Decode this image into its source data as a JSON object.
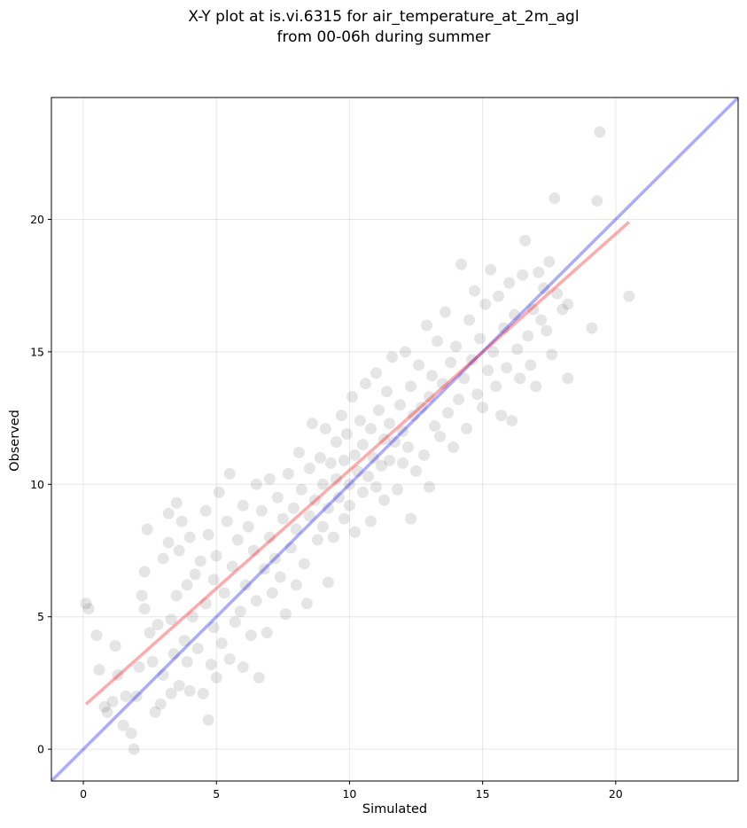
{
  "chart_data": {
    "type": "scatter",
    "title": "X-Y plot at is.vi.6315 for air_temperature_at_2m_agl",
    "subtitle": "from 00-06h during summer",
    "xlabel": "Simulated",
    "ylabel": "Observed",
    "xlim": [
      -1.2,
      24.6
    ],
    "ylim": [
      -1.2,
      24.6
    ],
    "xticks": [
      0,
      5,
      10,
      15,
      20
    ],
    "yticks": [
      0,
      5,
      10,
      15,
      20
    ],
    "grid": true,
    "point_color": "#000000",
    "point_alpha": 0.1,
    "identity_line": {
      "color": "#0000ff",
      "x": [
        -1.2,
        24.6
      ],
      "y": [
        -1.2,
        24.6
      ]
    },
    "fit_line": {
      "color": "#ff0000",
      "x": [
        0.1,
        20.5
      ],
      "y": [
        1.7,
        19.9
      ]
    },
    "points": [
      [
        0.1,
        5.5
      ],
      [
        0.2,
        5.3
      ],
      [
        0.5,
        4.3
      ],
      [
        0.6,
        3.0
      ],
      [
        0.8,
        1.6
      ],
      [
        0.9,
        1.4
      ],
      [
        1.1,
        1.8
      ],
      [
        1.2,
        3.9
      ],
      [
        1.3,
        2.8
      ],
      [
        1.5,
        0.9
      ],
      [
        1.6,
        2.0
      ],
      [
        1.8,
        0.6
      ],
      [
        1.9,
        0.0
      ],
      [
        2.0,
        2.0
      ],
      [
        2.1,
        3.1
      ],
      [
        2.2,
        5.8
      ],
      [
        2.3,
        6.7
      ],
      [
        2.3,
        5.3
      ],
      [
        2.4,
        8.3
      ],
      [
        2.5,
        4.4
      ],
      [
        2.6,
        3.3
      ],
      [
        2.7,
        1.4
      ],
      [
        2.8,
        4.7
      ],
      [
        2.9,
        1.7
      ],
      [
        3.0,
        7.2
      ],
      [
        3.0,
        2.8
      ],
      [
        3.2,
        8.9
      ],
      [
        3.2,
        7.8
      ],
      [
        3.3,
        4.9
      ],
      [
        3.3,
        2.1
      ],
      [
        3.4,
        3.6
      ],
      [
        3.5,
        9.3
      ],
      [
        3.5,
        5.8
      ],
      [
        3.6,
        7.5
      ],
      [
        3.6,
        2.4
      ],
      [
        3.7,
        8.6
      ],
      [
        3.8,
        4.1
      ],
      [
        3.9,
        3.3
      ],
      [
        3.9,
        6.2
      ],
      [
        4.0,
        2.2
      ],
      [
        4.0,
        8.0
      ],
      [
        4.1,
        5.0
      ],
      [
        4.2,
        6.6
      ],
      [
        4.3,
        3.8
      ],
      [
        4.4,
        7.1
      ],
      [
        4.5,
        2.1
      ],
      [
        4.6,
        9.0
      ],
      [
        4.6,
        5.5
      ],
      [
        4.7,
        1.1
      ],
      [
        4.7,
        8.1
      ],
      [
        4.8,
        3.2
      ],
      [
        4.9,
        4.6
      ],
      [
        4.9,
        6.4
      ],
      [
        5.0,
        2.7
      ],
      [
        5.0,
        7.3
      ],
      [
        5.1,
        9.7
      ],
      [
        5.2,
        4.0
      ],
      [
        5.3,
        5.9
      ],
      [
        5.4,
        8.6
      ],
      [
        5.5,
        10.4
      ],
      [
        5.5,
        3.4
      ],
      [
        5.6,
        6.9
      ],
      [
        5.7,
        4.8
      ],
      [
        5.8,
        7.9
      ],
      [
        5.9,
        5.2
      ],
      [
        6.0,
        9.2
      ],
      [
        6.0,
        3.1
      ],
      [
        6.1,
        6.2
      ],
      [
        6.2,
        8.4
      ],
      [
        6.3,
        4.3
      ],
      [
        6.4,
        7.5
      ],
      [
        6.5,
        10.0
      ],
      [
        6.5,
        5.6
      ],
      [
        6.6,
        2.7
      ],
      [
        6.7,
        9.0
      ],
      [
        6.8,
        6.8
      ],
      [
        6.9,
        4.4
      ],
      [
        7.0,
        8.0
      ],
      [
        7.0,
        10.2
      ],
      [
        7.1,
        5.9
      ],
      [
        7.2,
        7.2
      ],
      [
        7.3,
        9.5
      ],
      [
        7.4,
        6.5
      ],
      [
        7.5,
        8.7
      ],
      [
        7.6,
        5.1
      ],
      [
        7.7,
        10.4
      ],
      [
        7.8,
        7.6
      ],
      [
        7.9,
        9.1
      ],
      [
        8.0,
        6.2
      ],
      [
        8.0,
        8.3
      ],
      [
        8.1,
        11.2
      ],
      [
        8.2,
        9.8
      ],
      [
        8.3,
        7.0
      ],
      [
        8.4,
        5.5
      ],
      [
        8.5,
        10.6
      ],
      [
        8.5,
        8.8
      ],
      [
        8.6,
        12.3
      ],
      [
        8.7,
        9.4
      ],
      [
        8.8,
        7.9
      ],
      [
        8.9,
        11.0
      ],
      [
        9.0,
        10.0
      ],
      [
        9.0,
        8.4
      ],
      [
        9.1,
        12.1
      ],
      [
        9.2,
        6.3
      ],
      [
        9.2,
        9.1
      ],
      [
        9.3,
        10.8
      ],
      [
        9.4,
        8.0
      ],
      [
        9.5,
        11.6
      ],
      [
        9.5,
        10.2
      ],
      [
        9.6,
        9.5
      ],
      [
        9.7,
        12.6
      ],
      [
        9.8,
        8.7
      ],
      [
        9.8,
        10.9
      ],
      [
        9.9,
        11.9
      ],
      [
        10.0,
        10.0
      ],
      [
        10.0,
        9.2
      ],
      [
        10.1,
        13.3
      ],
      [
        10.2,
        11.1
      ],
      [
        10.2,
        8.2
      ],
      [
        10.3,
        10.5
      ],
      [
        10.4,
        12.4
      ],
      [
        10.5,
        9.7
      ],
      [
        10.5,
        11.5
      ],
      [
        10.6,
        13.8
      ],
      [
        10.7,
        10.3
      ],
      [
        10.8,
        8.6
      ],
      [
        10.8,
        12.1
      ],
      [
        10.9,
        11.0
      ],
      [
        11.0,
        9.9
      ],
      [
        11.0,
        14.2
      ],
      [
        11.1,
        12.8
      ],
      [
        11.2,
        10.7
      ],
      [
        11.3,
        11.7
      ],
      [
        11.3,
        9.4
      ],
      [
        11.4,
        13.5
      ],
      [
        11.5,
        12.3
      ],
      [
        11.5,
        10.9
      ],
      [
        11.6,
        14.8
      ],
      [
        11.7,
        11.6
      ],
      [
        11.8,
        9.8
      ],
      [
        11.9,
        13.0
      ],
      [
        12.0,
        12.0
      ],
      [
        12.0,
        10.8
      ],
      [
        12.1,
        15.0
      ],
      [
        12.2,
        11.4
      ],
      [
        12.3,
        13.7
      ],
      [
        12.3,
        8.7
      ],
      [
        12.4,
        12.6
      ],
      [
        12.5,
        10.5
      ],
      [
        12.6,
        14.5
      ],
      [
        12.7,
        12.9
      ],
      [
        12.8,
        11.1
      ],
      [
        12.9,
        16.0
      ],
      [
        13.0,
        13.3
      ],
      [
        13.0,
        9.9
      ],
      [
        13.1,
        14.1
      ],
      [
        13.2,
        12.2
      ],
      [
        13.3,
        15.4
      ],
      [
        13.4,
        11.8
      ],
      [
        13.5,
        13.8
      ],
      [
        13.6,
        16.5
      ],
      [
        13.7,
        12.7
      ],
      [
        13.8,
        14.6
      ],
      [
        13.9,
        11.4
      ],
      [
        14.0,
        15.2
      ],
      [
        14.1,
        13.2
      ],
      [
        14.2,
        18.3
      ],
      [
        14.3,
        14.0
      ],
      [
        14.4,
        12.1
      ],
      [
        14.5,
        16.2
      ],
      [
        14.6,
        14.7
      ],
      [
        14.7,
        17.3
      ],
      [
        14.8,
        13.4
      ],
      [
        14.9,
        15.5
      ],
      [
        15.0,
        12.9
      ],
      [
        15.1,
        16.8
      ],
      [
        15.2,
        14.3
      ],
      [
        15.3,
        18.1
      ],
      [
        15.4,
        15.0
      ],
      [
        15.5,
        13.7
      ],
      [
        15.6,
        17.1
      ],
      [
        15.7,
        12.6
      ],
      [
        15.8,
        15.9
      ],
      [
        15.9,
        14.4
      ],
      [
        16.0,
        17.6
      ],
      [
        16.1,
        12.4
      ],
      [
        16.2,
        16.4
      ],
      [
        16.3,
        15.1
      ],
      [
        16.4,
        14.0
      ],
      [
        16.5,
        17.9
      ],
      [
        16.6,
        19.2
      ],
      [
        16.7,
        15.6
      ],
      [
        16.8,
        14.5
      ],
      [
        16.9,
        16.6
      ],
      [
        17.0,
        13.7
      ],
      [
        17.1,
        18.0
      ],
      [
        17.2,
        16.2
      ],
      [
        17.3,
        17.4
      ],
      [
        17.4,
        15.8
      ],
      [
        17.5,
        18.4
      ],
      [
        17.6,
        14.9
      ],
      [
        17.7,
        20.8
      ],
      [
        17.8,
        17.2
      ],
      [
        18.0,
        16.6
      ],
      [
        18.2,
        14.0
      ],
      [
        18.2,
        16.8
      ],
      [
        19.1,
        15.9
      ],
      [
        19.3,
        20.7
      ],
      [
        19.4,
        23.3
      ],
      [
        20.5,
        17.1
      ]
    ]
  }
}
